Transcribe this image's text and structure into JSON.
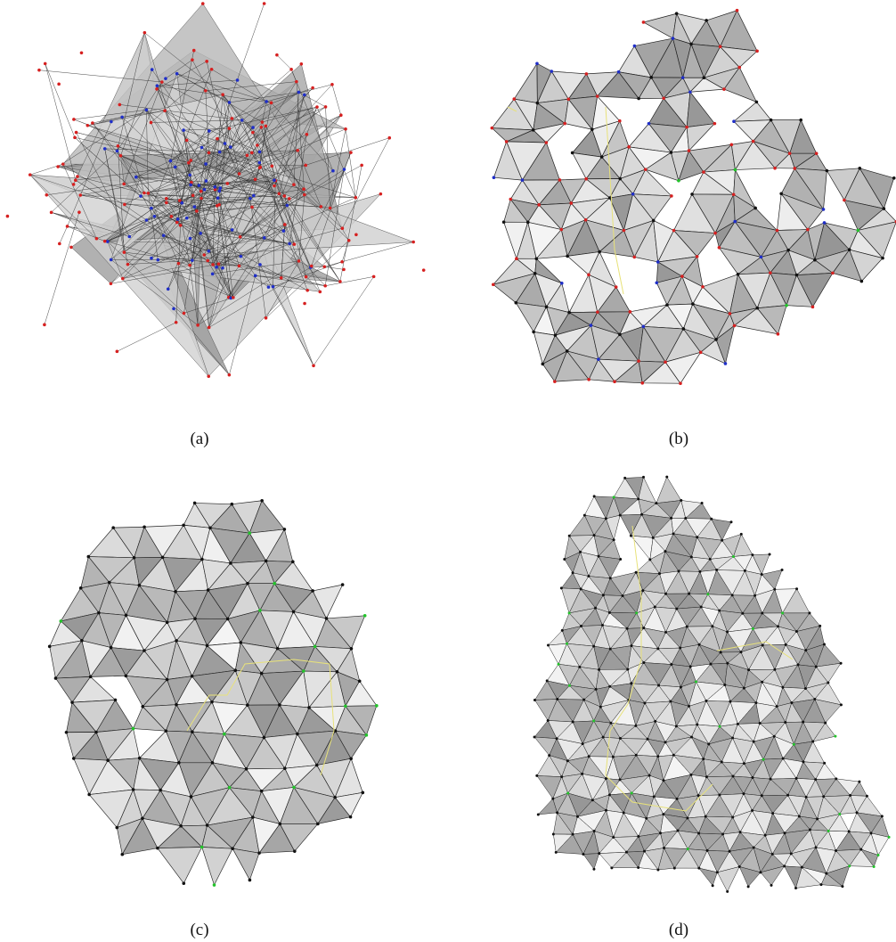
{
  "captions": {
    "a": "(a)",
    "b": "(b)",
    "c": "(c)",
    "d": "(d)"
  },
  "colors": {
    "background": "#ffffff",
    "mesh_face": "#bdbdbd",
    "mesh_face_light": "#e9e9e9",
    "edge": "#222222",
    "vertex_red": "#d62020",
    "vertex_blue": "#1f2ec8",
    "vertex_black": "#111111",
    "vertex_green": "#22c42a",
    "seam_yellow": "#e8e27a"
  }
}
